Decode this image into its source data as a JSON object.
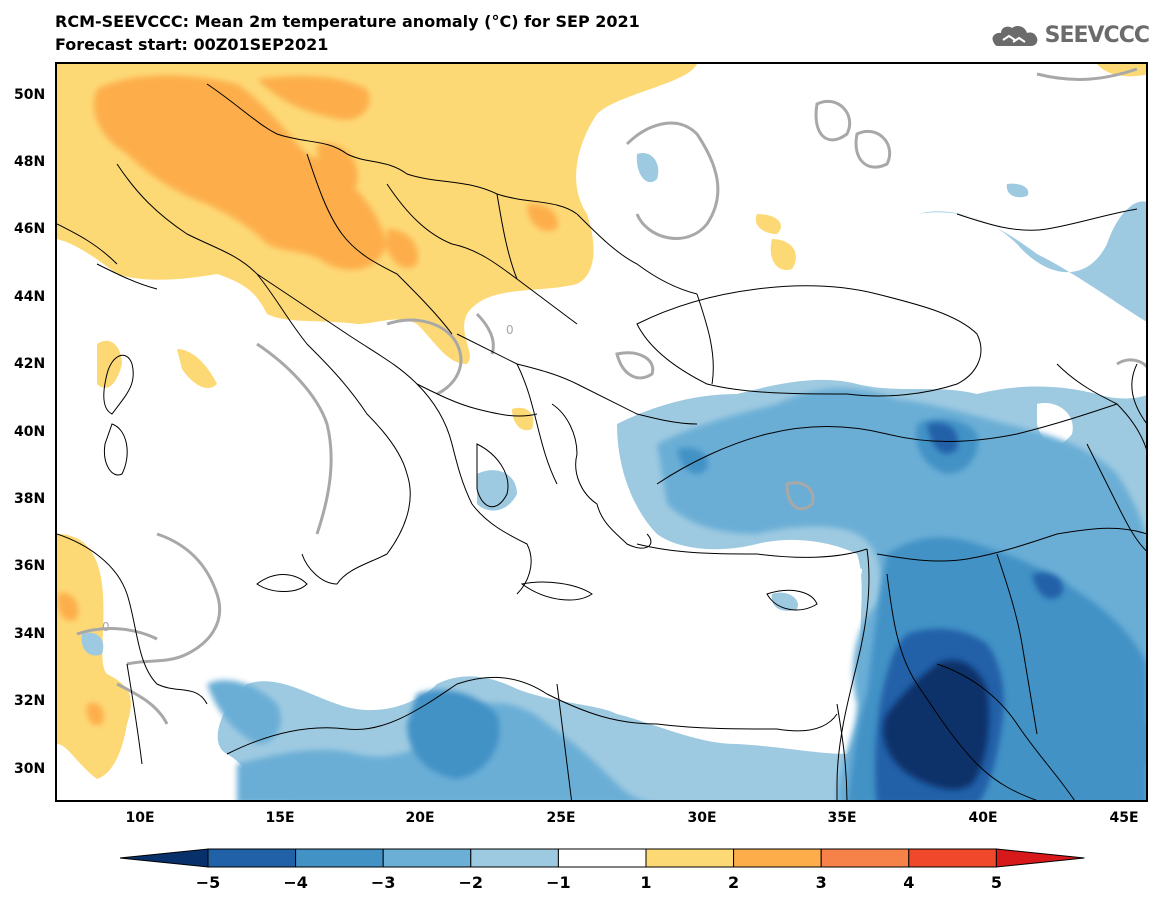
{
  "header": {
    "title_line1": "RCM-SEEVCCC: Mean 2m temperature anomaly (°C) for SEP 2021",
    "title_line2": "Forecast start: 00Z01SEP2021"
  },
  "logo": {
    "icon": "cloud-icon",
    "text": "SEEVCCC"
  },
  "map": {
    "lat_labels": [
      "50N",
      "48N",
      "46N",
      "44N",
      "42N",
      "40N",
      "38N",
      "36N",
      "34N",
      "32N",
      "30N"
    ],
    "lon_labels": [
      "10E",
      "15E",
      "20E",
      "25E",
      "30E",
      "35E",
      "40E",
      "45E"
    ],
    "contour_label": "0"
  },
  "colorbar": {
    "labels": [
      "−5",
      "−4",
      "−3",
      "−2",
      "−1",
      "1",
      "2",
      "3",
      "4",
      "5"
    ],
    "colors": [
      "#08306b",
      "#2161a8",
      "#4292c6",
      "#6baed6",
      "#9ecae1",
      "#ffffff",
      "#fdd976",
      "#fdae4b",
      "#f6824a",
      "#f0482a",
      "#d7191c"
    ]
  },
  "colors": {
    "cold1": "#9ecae1",
    "cold2": "#6baed6",
    "cold3": "#4292c6",
    "cold4": "#2161a8",
    "cold5": "#08306b",
    "warm1": "#fdd976",
    "warm2": "#fdae4b",
    "contour": "#a8a8a8",
    "border": "#000000"
  }
}
